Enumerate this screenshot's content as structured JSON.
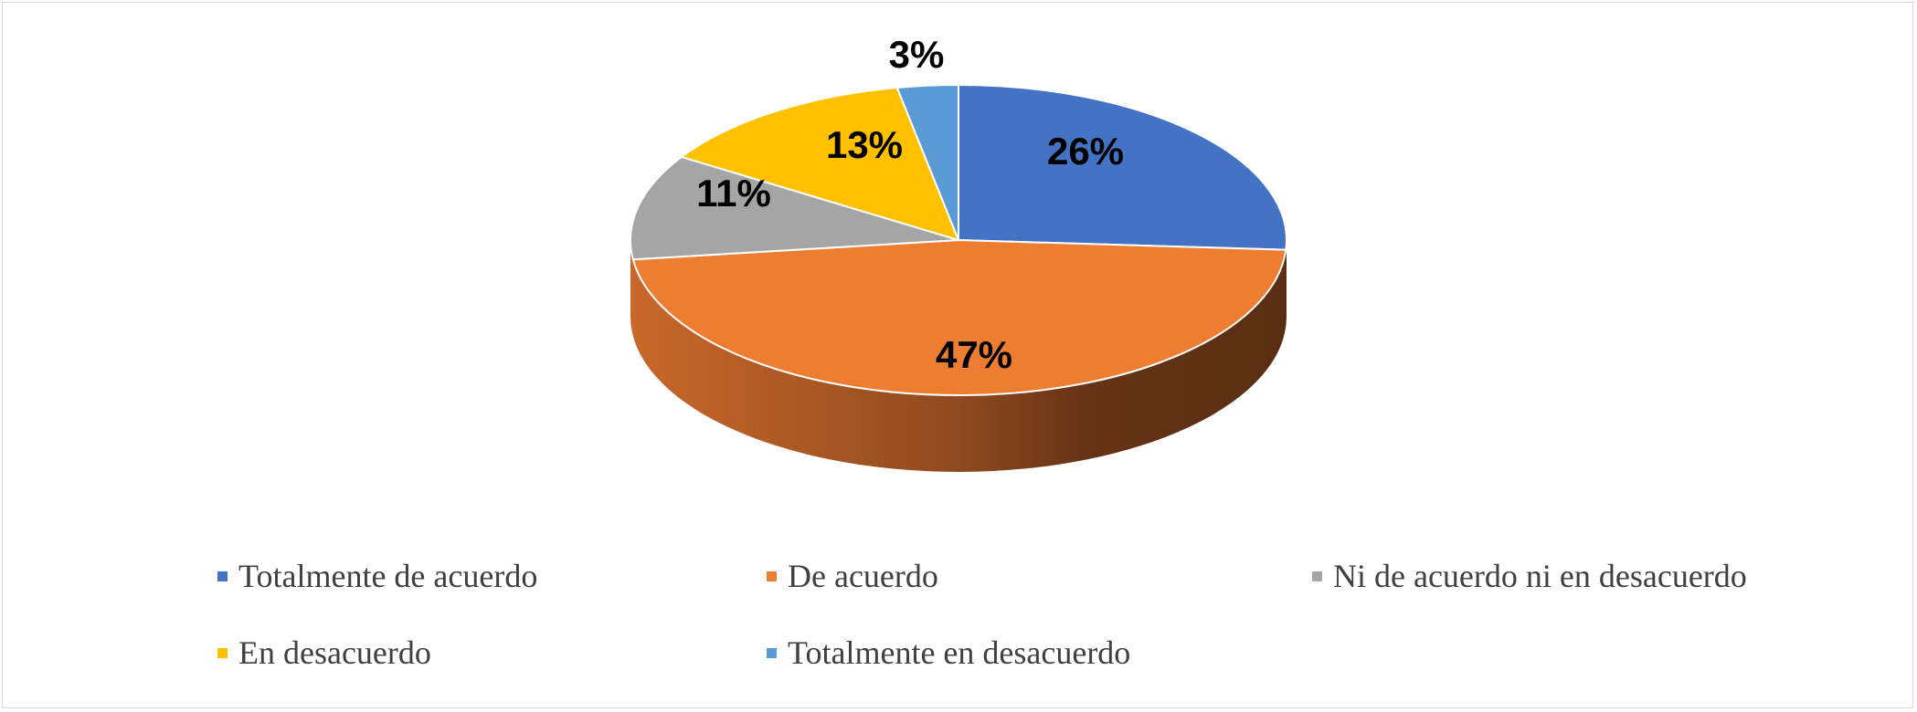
{
  "chart_data": {
    "type": "pie",
    "style": "3d",
    "title": "",
    "categories": [
      "Totalmente de acuerdo",
      "De acuerdo",
      "Ni de acuerdo ni en desacuerdo",
      "En desacuerdo",
      "Totalmente en desacuerdo"
    ],
    "values": [
      26,
      47,
      11,
      13,
      3
    ],
    "labels": [
      "26%",
      "47%",
      "11%",
      "13%",
      "3%"
    ],
    "colors": [
      "#4472c4",
      "#ed7d31",
      "#a5a5a5",
      "#ffc000",
      "#5b9bd5"
    ],
    "legend_position": "bottom"
  }
}
